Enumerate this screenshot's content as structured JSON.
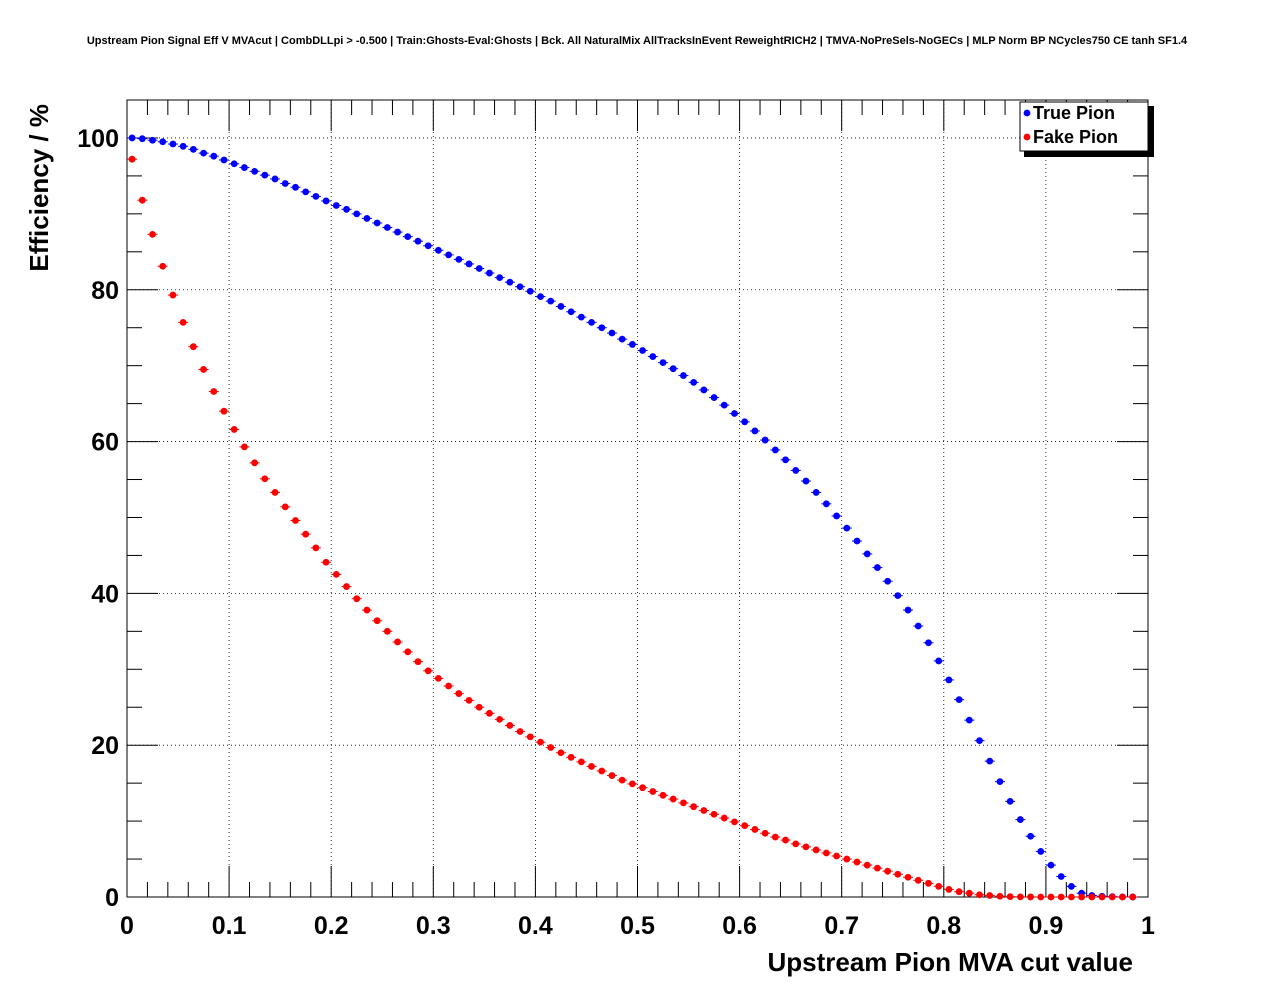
{
  "chart_data": {
    "type": "scatter",
    "title": "Upstream Pion Signal Eff V MVAcut | CombDLLpi > -0.500 | Train:Ghosts-Eval:Ghosts | Bck. All NaturalMix AllTracksInEvent ReweightRICH2 | TMVA-NoPreSels-NoGECs | MLP Norm BP NCycles750 CE tanh SF1.4",
    "xlabel": "Upstream Pion MVA cut value",
    "ylabel": "Efficiency / %",
    "xlim": [
      0,
      1
    ],
    "ylim": [
      0,
      105
    ],
    "x_ticks": [
      0,
      0.1,
      0.2,
      0.3,
      0.4,
      0.5,
      0.6,
      0.7,
      0.8,
      0.9,
      1
    ],
    "x_tick_labels": [
      "0",
      "0.1",
      "0.2",
      "0.3",
      "0.4",
      "0.5",
      "0.6",
      "0.7",
      "0.8",
      "0.9",
      "1"
    ],
    "y_ticks": [
      0,
      20,
      40,
      60,
      80,
      100
    ],
    "y_tick_labels": [
      "0",
      "20",
      "40",
      "60",
      "80",
      "100"
    ],
    "grid": true,
    "legend": "top-right",
    "series": [
      {
        "name": "True Pion",
        "color": "#0000ff",
        "x": [
          0.005,
          0.015,
          0.025,
          0.035,
          0.045,
          0.055,
          0.065,
          0.075,
          0.085,
          0.095,
          0.105,
          0.115,
          0.125,
          0.135,
          0.145,
          0.155,
          0.165,
          0.175,
          0.185,
          0.195,
          0.205,
          0.215,
          0.225,
          0.235,
          0.245,
          0.255,
          0.265,
          0.275,
          0.285,
          0.295,
          0.305,
          0.315,
          0.325,
          0.335,
          0.345,
          0.355,
          0.365,
          0.375,
          0.385,
          0.395,
          0.405,
          0.415,
          0.425,
          0.435,
          0.445,
          0.455,
          0.465,
          0.475,
          0.485,
          0.495,
          0.505,
          0.515,
          0.525,
          0.535,
          0.545,
          0.555,
          0.565,
          0.575,
          0.585,
          0.595,
          0.605,
          0.615,
          0.625,
          0.635,
          0.645,
          0.655,
          0.665,
          0.675,
          0.685,
          0.695,
          0.705,
          0.715,
          0.725,
          0.735,
          0.745,
          0.755,
          0.765,
          0.775,
          0.785,
          0.795,
          0.805,
          0.815,
          0.825,
          0.835,
          0.845,
          0.855,
          0.865,
          0.875,
          0.885,
          0.895,
          0.905,
          0.915,
          0.925,
          0.935,
          0.945,
          0.955,
          0.965,
          0.975,
          0.985
        ],
        "y": [
          100,
          99.9,
          99.7,
          99.5,
          99.2,
          98.9,
          98.5,
          98.0,
          97.6,
          97.1,
          96.6,
          96.1,
          95.6,
          95.1,
          94.6,
          94.0,
          93.5,
          92.9,
          92.3,
          91.7,
          91.1,
          90.6,
          90.0,
          89.4,
          88.8,
          88.2,
          87.6,
          87.0,
          86.4,
          85.8,
          85.2,
          84.6,
          84.0,
          83.4,
          82.8,
          82.2,
          81.6,
          81.0,
          80.4,
          79.8,
          79.1,
          78.5,
          77.8,
          77.1,
          76.4,
          75.7,
          75.0,
          74.3,
          73.5,
          72.8,
          72.0,
          71.2,
          70.4,
          69.6,
          68.7,
          67.8,
          66.8,
          65.8,
          64.8,
          63.7,
          62.6,
          61.4,
          60.2,
          58.9,
          57.6,
          56.2,
          54.8,
          53.3,
          51.8,
          50.2,
          48.6,
          46.9,
          45.2,
          43.4,
          41.6,
          39.7,
          37.8,
          35.7,
          33.5,
          31.1,
          28.6,
          26.0,
          23.3,
          20.6,
          17.9,
          15.2,
          12.6,
          10.2,
          8.0,
          6.0,
          4.2,
          2.7,
          1.4,
          0.5,
          0.2,
          0.1,
          0.05,
          0.02,
          0.01
        ]
      },
      {
        "name": "Fake Pion",
        "color": "#ff0000",
        "x": [
          0.005,
          0.015,
          0.025,
          0.035,
          0.045,
          0.055,
          0.065,
          0.075,
          0.085,
          0.095,
          0.105,
          0.115,
          0.125,
          0.135,
          0.145,
          0.155,
          0.165,
          0.175,
          0.185,
          0.195,
          0.205,
          0.215,
          0.225,
          0.235,
          0.245,
          0.255,
          0.265,
          0.275,
          0.285,
          0.295,
          0.305,
          0.315,
          0.325,
          0.335,
          0.345,
          0.355,
          0.365,
          0.375,
          0.385,
          0.395,
          0.405,
          0.415,
          0.425,
          0.435,
          0.445,
          0.455,
          0.465,
          0.475,
          0.485,
          0.495,
          0.505,
          0.515,
          0.525,
          0.535,
          0.545,
          0.555,
          0.565,
          0.575,
          0.585,
          0.595,
          0.605,
          0.615,
          0.625,
          0.635,
          0.645,
          0.655,
          0.665,
          0.675,
          0.685,
          0.695,
          0.705,
          0.715,
          0.725,
          0.735,
          0.745,
          0.755,
          0.765,
          0.775,
          0.785,
          0.795,
          0.805,
          0.815,
          0.825,
          0.835,
          0.845,
          0.855,
          0.865,
          0.875,
          0.885,
          0.895,
          0.905,
          0.915,
          0.925,
          0.935,
          0.945,
          0.955,
          0.965,
          0.975,
          0.985
        ],
        "y": [
          97.2,
          91.8,
          87.3,
          83.1,
          79.3,
          75.7,
          72.5,
          69.5,
          66.6,
          64.0,
          61.6,
          59.3,
          57.2,
          55.1,
          53.3,
          51.4,
          49.6,
          47.8,
          46.0,
          44.1,
          42.5,
          40.9,
          39.3,
          37.8,
          36.4,
          35.0,
          33.6,
          32.3,
          31.0,
          29.8,
          28.8,
          27.8,
          26.8,
          25.9,
          25.0,
          24.2,
          23.4,
          22.6,
          21.8,
          21.1,
          20.4,
          19.7,
          19.0,
          18.4,
          17.8,
          17.2,
          16.6,
          16.0,
          15.4,
          14.9,
          14.4,
          13.9,
          13.4,
          12.9,
          12.4,
          11.9,
          11.4,
          10.9,
          10.4,
          9.9,
          9.4,
          8.9,
          8.4,
          7.9,
          7.5,
          7.0,
          6.6,
          6.2,
          5.8,
          5.4,
          5.0,
          4.6,
          4.2,
          3.8,
          3.4,
          3.0,
          2.6,
          2.2,
          1.8,
          1.4,
          1.0,
          0.7,
          0.5,
          0.3,
          0.2,
          0.1,
          0.05,
          0.02,
          0.01,
          0.0,
          0.0,
          0.0,
          0.0,
          0.0,
          0.0,
          0.0,
          0.0,
          0.0,
          0.0
        ]
      }
    ]
  }
}
